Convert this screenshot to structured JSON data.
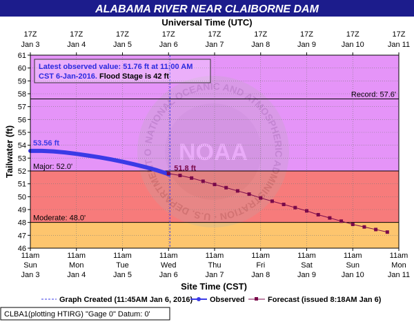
{
  "title": "ALABAMA RIVER NEAR CLAIBORNE DAM",
  "top_axis_title": "Universal Time (UTC)",
  "bottom_axis_title": "Site Time (CST)",
  "y_axis_title": "Tailwater (ft)",
  "top_ticks": [
    [
      "17Z",
      "Jan 3"
    ],
    [
      "17Z",
      "Jan 4"
    ],
    [
      "17Z",
      "Jan 5"
    ],
    [
      "17Z",
      "Jan 6"
    ],
    [
      "17Z",
      "Jan 7"
    ],
    [
      "17Z",
      "Jan 8"
    ],
    [
      "17Z",
      "Jan 9"
    ],
    [
      "17Z",
      "Jan 10"
    ],
    [
      "17Z",
      "Jan 11"
    ]
  ],
  "bottom_ticks": [
    [
      "11am",
      "Sun",
      "Jan 3"
    ],
    [
      "11am",
      "Mon",
      "Jan 4"
    ],
    [
      "11am",
      "Tue",
      "Jan 5"
    ],
    [
      "11am",
      "Wed",
      "Jan 6"
    ],
    [
      "11am",
      "Thu",
      "Jan 7"
    ],
    [
      "11am",
      "Fri",
      "Jan 8"
    ],
    [
      "11am",
      "Sat",
      "Jan 9"
    ],
    [
      "11am",
      "Sun",
      "Jan 10"
    ],
    [
      "11am",
      "Mon",
      "Jan 11"
    ]
  ],
  "info_box": {
    "line1": "Latest observed value: 51.76 ft at 11:00 AM",
    "line2a": "CST 6-Jan-2016.",
    "line2b": " Flood Stage is 42 ft"
  },
  "thresholds": [
    {
      "label": "Record: 57.6'",
      "value": 57.6
    },
    {
      "label": "Major: 52.0'",
      "value": 52.0
    },
    {
      "label": "Moderate: 48.0'",
      "value": 48.0
    }
  ],
  "annotations": {
    "first_observed": "53.56 ft",
    "first_forecast": "51.8 ft"
  },
  "legend": {
    "created": "Graph Created (11:45AM Jan 6, 2016)",
    "observed": "Observed",
    "forecast": "Forecast (issued 8:18AM Jan 6)"
  },
  "footer": "CLBA1(plotting HTIRG) \"Gage 0\" Datum: 0'",
  "watermark": {
    "center": "NOAA",
    "ring": "NATIONAL OCEANIC AND ATMOSPHERIC ADMINISTRATION · U.S. DEPARTMENT OF COMMERCE"
  },
  "colors": {
    "moderate_band": "#fdc56e",
    "major_band": "#f77b7b",
    "above_major_band": "#e594f8",
    "observed": "#3a3ae6",
    "forecast": "#7a0a4a",
    "title_bar": "#1c1c8c"
  },
  "chart_data": {
    "type": "line",
    "x_unit": "days after 11am CST Jan 3, 2016",
    "ylim": [
      46,
      61
    ],
    "xlim": [
      0,
      8
    ],
    "graph_created_x": 3.03,
    "series": [
      {
        "name": "Observed",
        "x": [
          0.0,
          0.25,
          0.5,
          0.75,
          1.0,
          1.25,
          1.5,
          1.75,
          2.0,
          2.25,
          2.5,
          2.75,
          3.0
        ],
        "y": [
          53.56,
          53.56,
          53.52,
          53.44,
          53.33,
          53.2,
          53.06,
          52.9,
          52.72,
          52.52,
          52.3,
          52.05,
          51.76
        ]
      },
      {
        "name": "Forecast",
        "x": [
          3.0,
          3.25,
          3.5,
          3.75,
          4.0,
          4.25,
          4.5,
          4.75,
          5.0,
          5.25,
          5.5,
          5.75,
          6.0,
          6.25,
          6.5,
          6.75,
          7.0,
          7.25,
          7.5,
          7.75
        ],
        "y": [
          51.8,
          51.65,
          51.45,
          51.2,
          50.95,
          50.7,
          50.45,
          50.2,
          49.9,
          49.65,
          49.4,
          49.15,
          48.9,
          48.6,
          48.35,
          48.1,
          47.85,
          47.65,
          47.45,
          47.25
        ]
      }
    ]
  }
}
